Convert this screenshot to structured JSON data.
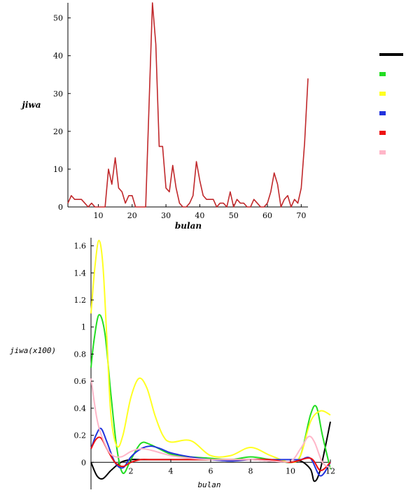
{
  "chart_data": [
    {
      "type": "line",
      "xlabel": "bulan",
      "ylabel": "jiwa",
      "xlim": [
        1,
        72
      ],
      "ylim": [
        0,
        54
      ],
      "x_ticks": [
        "10",
        "20",
        "30",
        "40",
        "50",
        "60",
        "70"
      ],
      "y_ticks": [
        "0",
        "10",
        "20",
        "30",
        "40",
        "50"
      ],
      "x_tick_values": [
        10,
        20,
        30,
        40,
        50,
        60,
        70
      ],
      "y_tick_values": [
        0,
        10,
        20,
        30,
        40,
        50
      ],
      "grid": false,
      "series": [
        {
          "color": "#c0282b",
          "x": [
            1,
            2,
            3,
            4,
            5,
            6,
            7,
            8,
            9,
            10,
            11,
            12,
            13,
            14,
            15,
            16,
            17,
            18,
            19,
            20,
            21,
            22,
            23,
            24,
            25,
            26,
            27,
            28,
            29,
            30,
            31,
            32,
            33,
            34,
            35,
            36,
            37,
            38,
            39,
            40,
            41,
            42,
            43,
            44,
            45,
            46,
            47,
            48,
            49,
            50,
            51,
            52,
            53,
            54,
            55,
            56,
            57,
            58,
            59,
            60,
            61,
            62,
            63,
            64,
            65,
            66,
            67,
            68,
            69,
            70,
            71,
            72
          ],
          "values": [
            1,
            3,
            2,
            2,
            2,
            1,
            0,
            1,
            0,
            0,
            0,
            0,
            10,
            6,
            13,
            5,
            4,
            1,
            3,
            3,
            0,
            0,
            0,
            0,
            27,
            54,
            43,
            16,
            16,
            5,
            4,
            11,
            5,
            1,
            0,
            0,
            1,
            3,
            12,
            7,
            3,
            2,
            2,
            2,
            0,
            1,
            1,
            0,
            4,
            0,
            2,
            1,
            1,
            0,
            0,
            2,
            1,
            0,
            0,
            1,
            4,
            9,
            6,
            0,
            2,
            3,
            0,
            2,
            1,
            5,
            17,
            34
          ]
        }
      ]
    },
    {
      "type": "line",
      "xlabel": "bulan",
      "ylabel": "jiwa(x100)",
      "xlim": [
        0,
        12
      ],
      "ylim": [
        -0.2,
        1.66
      ],
      "x_ticks": [
        "2",
        "4",
        "6",
        "8",
        "10",
        "12"
      ],
      "y_ticks": [
        "0",
        "0.2",
        "0.4",
        "0.6",
        "0.8",
        "1",
        "1.2",
        "1.4",
        "1.6"
      ],
      "x_tick_values": [
        2,
        4,
        6,
        8,
        10,
        12
      ],
      "y_tick_values": [
        0,
        0.2,
        0.4,
        0.6,
        0.8,
        1,
        1.2,
        1.4,
        1.6
      ],
      "grid": false,
      "legend_position": "right",
      "series": [
        {
          "color": "#000000",
          "x": [
            0,
            0.3,
            0.6,
            1,
            1.5,
            2,
            2.5,
            3,
            4,
            5,
            6,
            7,
            8,
            9,
            10,
            10.5,
            11,
            11.2,
            11.5,
            12
          ],
          "values": [
            0,
            -0.1,
            -0.12,
            -0.06,
            0.0,
            0.02,
            0.02,
            0.02,
            0.02,
            0.02,
            0.02,
            0.02,
            0.02,
            0.01,
            0.0,
            0.01,
            -0.05,
            -0.14,
            -0.05,
            0.3
          ]
        },
        {
          "color": "#22dd22",
          "x": [
            0,
            0.15,
            0.4,
            0.7,
            1,
            1.3,
            1.6,
            2,
            2.5,
            3,
            4,
            5,
            6,
            7,
            8,
            9,
            10,
            10.5,
            11,
            11.3,
            11.6,
            12
          ],
          "values": [
            0.7,
            0.9,
            1.09,
            0.95,
            0.5,
            0.1,
            -0.08,
            0.02,
            0.14,
            0.13,
            0.06,
            0.04,
            0.03,
            0.02,
            0.04,
            0.02,
            0.0,
            0.05,
            0.35,
            0.41,
            0.2,
            -0.05
          ]
        },
        {
          "color": "#ffff22",
          "x": [
            0,
            0.2,
            0.4,
            0.6,
            0.8,
            1,
            1.3,
            1.6,
            2,
            2.4,
            2.8,
            3.2,
            3.6,
            4,
            5,
            6,
            7,
            8,
            9,
            10,
            10.5,
            11,
            11.5,
            12
          ],
          "values": [
            1.1,
            1.45,
            1.64,
            1.45,
            0.9,
            0.35,
            0.12,
            0.2,
            0.48,
            0.62,
            0.55,
            0.35,
            0.2,
            0.15,
            0.16,
            0.05,
            0.05,
            0.11,
            0.05,
            0.0,
            0.05,
            0.3,
            0.38,
            0.35
          ]
        },
        {
          "color": "#2233dd",
          "x": [
            0,
            0.25,
            0.5,
            0.8,
            1.2,
            1.6,
            2,
            2.5,
            3,
            3.5,
            4,
            5,
            6,
            7,
            8,
            9,
            10,
            10.5,
            11,
            11.5,
            12
          ],
          "values": [
            0.1,
            0.2,
            0.25,
            0.15,
            0.0,
            -0.04,
            0.04,
            0.1,
            0.12,
            0.1,
            0.07,
            0.04,
            0.02,
            0.01,
            0.02,
            0.02,
            0.02,
            0.02,
            0.03,
            -0.1,
            0.0
          ]
        },
        {
          "color": "#ee1111",
          "x": [
            0,
            0.25,
            0.5,
            0.8,
            1.2,
            1.6,
            2,
            2.5,
            3,
            4,
            5,
            6,
            7,
            8,
            9,
            10,
            11,
            11.5,
            12
          ],
          "values": [
            0.1,
            0.17,
            0.18,
            0.1,
            0.0,
            -0.03,
            0.0,
            0.02,
            0.02,
            0.02,
            0.02,
            0.02,
            0.02,
            0.02,
            0.02,
            0.0,
            0.03,
            -0.06,
            0.0
          ]
        },
        {
          "color": "#ffb6c8",
          "x": [
            0,
            0.3,
            0.6,
            1,
            1.5,
            2,
            2.5,
            3,
            4,
            5,
            6,
            7,
            8,
            9,
            10,
            10.5,
            10.9,
            11.2,
            11.6,
            12
          ],
          "values": [
            0.62,
            0.32,
            0.17,
            0.06,
            0.04,
            0.08,
            0.1,
            0.09,
            0.05,
            0.03,
            0.02,
            0.02,
            0.02,
            0.01,
            0.01,
            0.1,
            0.19,
            0.15,
            0.0,
            -0.04
          ]
        }
      ]
    }
  ],
  "legend": {
    "swatches": [
      "#000000",
      "#22dd22",
      "#ffff22",
      "#2233dd",
      "#ee1111",
      "#ffb6c8"
    ]
  }
}
